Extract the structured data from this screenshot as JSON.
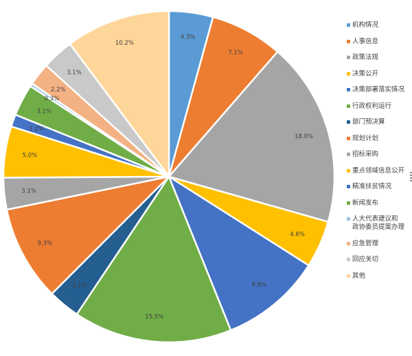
{
  "chart_data": {
    "type": "pie",
    "categories": [
      "机构情况",
      "人事信息",
      "政策法规",
      "决策公开",
      "决策部署落实情况",
      "行政权利运行",
      "部门预决算",
      "规划计划",
      "招标采购",
      "重点领域信息公开",
      "精准扶贫情况",
      "新闻发布",
      "人大代表建议和政协委员提案办理",
      "应急管理",
      "回应关切",
      "其他"
    ],
    "slices": [
      {
        "name": "机构情况",
        "value": 4.3,
        "label": "4.3%",
        "color": "#5b9bd5"
      },
      {
        "name": "人事信息",
        "value": 7.1,
        "label": "7.1%",
        "color": "#ed7d31"
      },
      {
        "name": "政策法规",
        "value": 18.0,
        "label": "18.0%",
        "color": "#a5a5a5"
      },
      {
        "name": "决策公开",
        "value": 4.6,
        "label": "4.6%",
        "color": "#ffc000"
      },
      {
        "name": "决策部署落实情况",
        "value": 9.9,
        "label": "9.9%",
        "color": "#4472c4"
      },
      {
        "name": "行政权利运行",
        "value": 15.5,
        "label": "15.5%",
        "color": "#70ad47"
      },
      {
        "name": "部门预决算",
        "value": 3.1,
        "label": "3.1%",
        "color": "#255e91"
      },
      {
        "name": "规划计划",
        "value": 9.3,
        "label": "9.3%",
        "color": "#ed7d31"
      },
      {
        "name": "招标采购",
        "value": 3.1,
        "label": "3.1%",
        "color": "#a5a5a5"
      },
      {
        "name": "重点领域信息公开",
        "value": 5.0,
        "label": "5.0%",
        "color": "#ffc000"
      },
      {
        "name": "精准扶贫情况",
        "value": 1.2,
        "label": "1.2%",
        "color": "#4472c4"
      },
      {
        "name": "新闻发布",
        "value": 3.1,
        "label": "3.1%",
        "color": "#70ad47"
      },
      {
        "name": "人大代表建议和政协委员提案办理",
        "value": 0.3,
        "label": "0.3%",
        "color": "#9dc3e6"
      },
      {
        "name": "应急管理",
        "value": 2.2,
        "label": "2.2%",
        "color": "#f4b183"
      },
      {
        "name": "回应关切",
        "value": 3.1,
        "label": "3.1%",
        "color": "#c9c9c9"
      },
      {
        "name": "其他",
        "value": 10.2,
        "label": "10.2%",
        "color": "#ffd699"
      }
    ],
    "legend": {
      "position": "right",
      "items": [
        {
          "lines": [
            "机构情况"
          ],
          "color": "#5b9bd5"
        },
        {
          "lines": [
            "人事信息"
          ],
          "color": "#ed7d31"
        },
        {
          "lines": [
            "政策法规"
          ],
          "color": "#a5a5a5"
        },
        {
          "lines": [
            "决策公开"
          ],
          "color": "#ffc000"
        },
        {
          "lines": [
            "决策部署落实情况"
          ],
          "color": "#4472c4"
        },
        {
          "lines": [
            "行政权利运行"
          ],
          "color": "#70ad47"
        },
        {
          "lines": [
            "部门预决算"
          ],
          "color": "#255e91"
        },
        {
          "lines": [
            "规划计划"
          ],
          "color": "#ed7d31"
        },
        {
          "lines": [
            "招标采购"
          ],
          "color": "#a5a5a5"
        },
        {
          "lines": [
            "重点领域信息公开"
          ],
          "color": "#ffc000"
        },
        {
          "lines": [
            "精准扶贫情况"
          ],
          "color": "#4472c4"
        },
        {
          "lines": [
            "新闻发布"
          ],
          "color": "#70ad47"
        },
        {
          "lines": [
            "人大代表建议和",
            "政协委员提案办理"
          ],
          "color": "#9dc3e6"
        },
        {
          "lines": [
            "应急管理"
          ],
          "color": "#f4b183"
        },
        {
          "lines": [
            "回应关切"
          ],
          "color": "#c9c9c9"
        },
        {
          "lines": [
            "其他"
          ],
          "color": "#ffd699"
        }
      ]
    }
  }
}
